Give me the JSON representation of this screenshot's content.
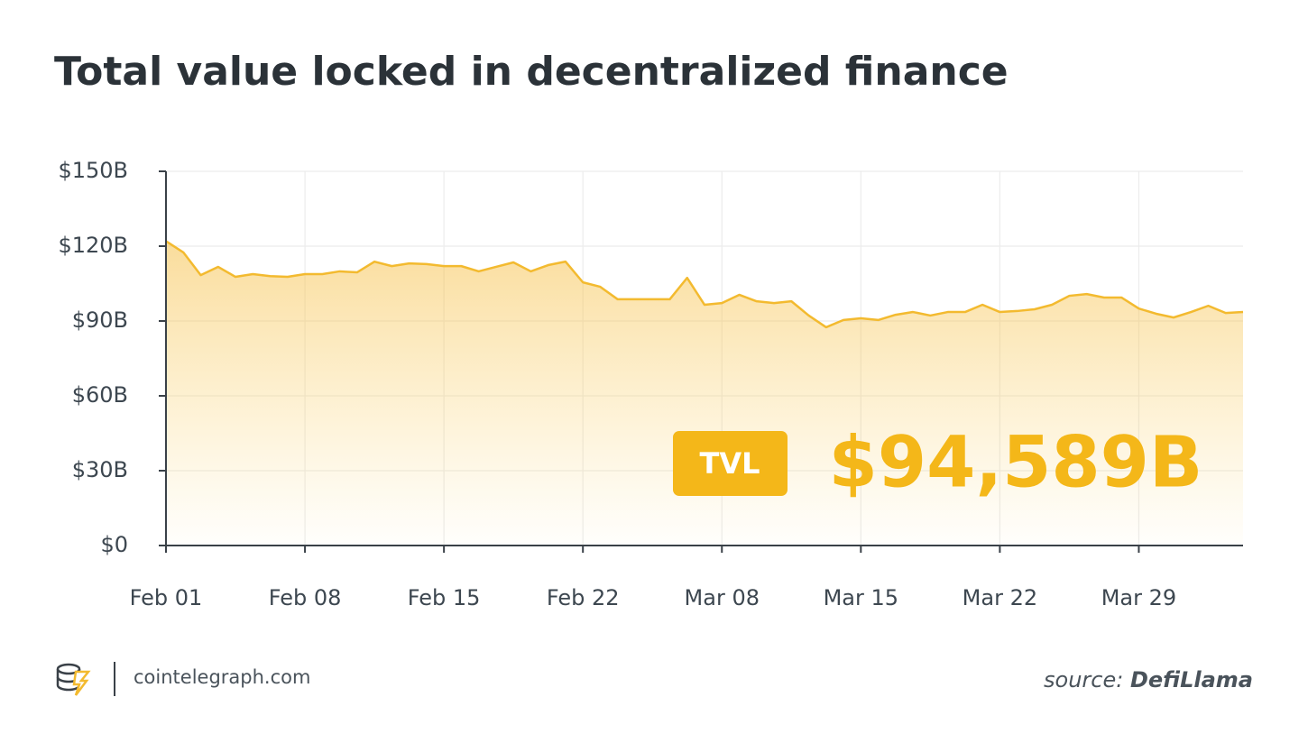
{
  "chart_data": {
    "type": "area",
    "title": "Total value locked in decentralized finance",
    "categories": [
      "Feb 01",
      null,
      null,
      null,
      null,
      null,
      null,
      null,
      "Feb 08",
      null,
      null,
      null,
      null,
      null,
      null,
      null,
      "Feb 15",
      null,
      null,
      null,
      null,
      null,
      null,
      null,
      "Feb 22",
      null,
      null,
      null,
      null,
      null,
      null,
      null,
      "Mar 08",
      null,
      null,
      null,
      null,
      null,
      null,
      null,
      "Mar 15",
      null,
      null,
      null,
      null,
      null,
      null,
      null,
      "Mar 22",
      null,
      null,
      null,
      null,
      null,
      null,
      null,
      "Mar 29",
      null,
      null,
      null,
      null,
      null,
      null
    ],
    "series": [
      {
        "name": "TVL",
        "color": "#f3ba2f",
        "values": [
          122,
          117.5,
          108.4,
          111.7,
          107.7,
          108.8,
          108,
          107.7,
          108.8,
          108.8,
          109.9,
          109.5,
          113.8,
          112,
          113.1,
          112.8,
          112,
          112,
          109.9,
          111.7,
          113.5,
          109.9,
          112.4,
          113.8,
          105.5,
          103.7,
          98.7,
          98.7,
          98.7,
          98.7,
          107.3,
          96.5,
          97.2,
          100.5,
          97.9,
          97.2,
          97.9,
          92.2,
          87.5,
          90.4,
          91.1,
          90.4,
          92.5,
          93.6,
          92.2,
          93.6,
          93.6,
          96.5,
          93.6,
          94,
          94.7,
          96.5,
          100.1,
          100.8,
          99.4,
          99.4,
          95,
          92.9,
          91.4,
          93.6,
          96.1,
          93.2,
          93.6
        ]
      }
    ],
    "ylim": [
      0,
      150
    ],
    "yticks": [
      {
        "value": 0,
        "label": "$0"
      },
      {
        "value": 30,
        "label": "$30B"
      },
      {
        "value": 60,
        "label": "$60B"
      },
      {
        "value": 90,
        "label": "$90B"
      },
      {
        "value": 120,
        "label": "$120B"
      },
      {
        "value": 150,
        "label": "$150B"
      }
    ],
    "grid": true,
    "annotations": {
      "badge": "TVL",
      "headline": "$94,589B",
      "badge_color": "#f4b719"
    },
    "footer": {
      "site": "cointelegraph.com",
      "source_prefix": "source:",
      "source_name": "DefiLlama"
    }
  }
}
